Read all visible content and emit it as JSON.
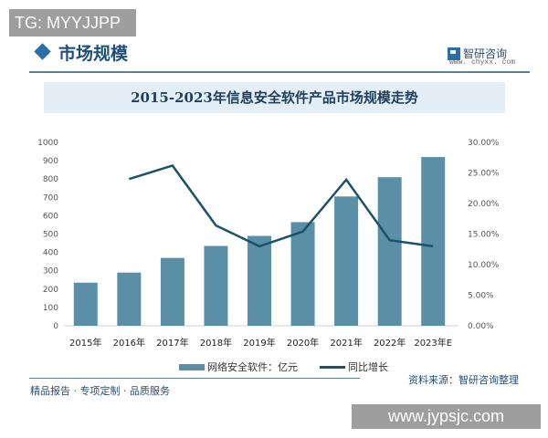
{
  "overlay": {
    "top_left_tag": "TG: MYYJJPP",
    "bottom_right_watermark": "www.jypsjc.com"
  },
  "header": {
    "section_title": "市场规模",
    "brand_name": "智研咨询",
    "brand_url": "www. chyxx. com"
  },
  "footer": {
    "tagline": "精品报告 · 专项定制 · 品质服务",
    "source": "资料来源：智研咨询整理"
  },
  "chart_data": {
    "type": "bar",
    "title": "2015-2023年信息安全软件产品市场规模走势",
    "categories": [
      "2015年",
      "2016年",
      "2017年",
      "2018年",
      "2019年",
      "2020年",
      "2021年",
      "2022年",
      "2023年E"
    ],
    "series": [
      {
        "name": "网络安全软件：亿元",
        "type": "bar",
        "axis": "left",
        "color": "#5b8fa8",
        "values": [
          235,
          290,
          370,
          435,
          490,
          565,
          705,
          810,
          920
        ]
      },
      {
        "name": "同比增长",
        "type": "line",
        "axis": "right",
        "color": "#1b5266",
        "values": [
          null,
          24.0,
          26.2,
          16.4,
          13.0,
          15.4,
          23.9,
          14.0,
          13.0
        ]
      }
    ],
    "left_axis": {
      "ylim": [
        0,
        1000
      ],
      "ticks": [
        "0",
        "100",
        "200",
        "300",
        "400",
        "500",
        "600",
        "700",
        "800",
        "900",
        "1000"
      ]
    },
    "right_axis": {
      "ylim": [
        0,
        30
      ],
      "ticks": [
        "0.00%",
        "5.00%",
        "10.00%",
        "15.00%",
        "20.00%",
        "25.00%",
        "30.00%"
      ]
    },
    "xlabel": "",
    "ylabel": "",
    "grid": false,
    "legend_position": "bottom"
  }
}
